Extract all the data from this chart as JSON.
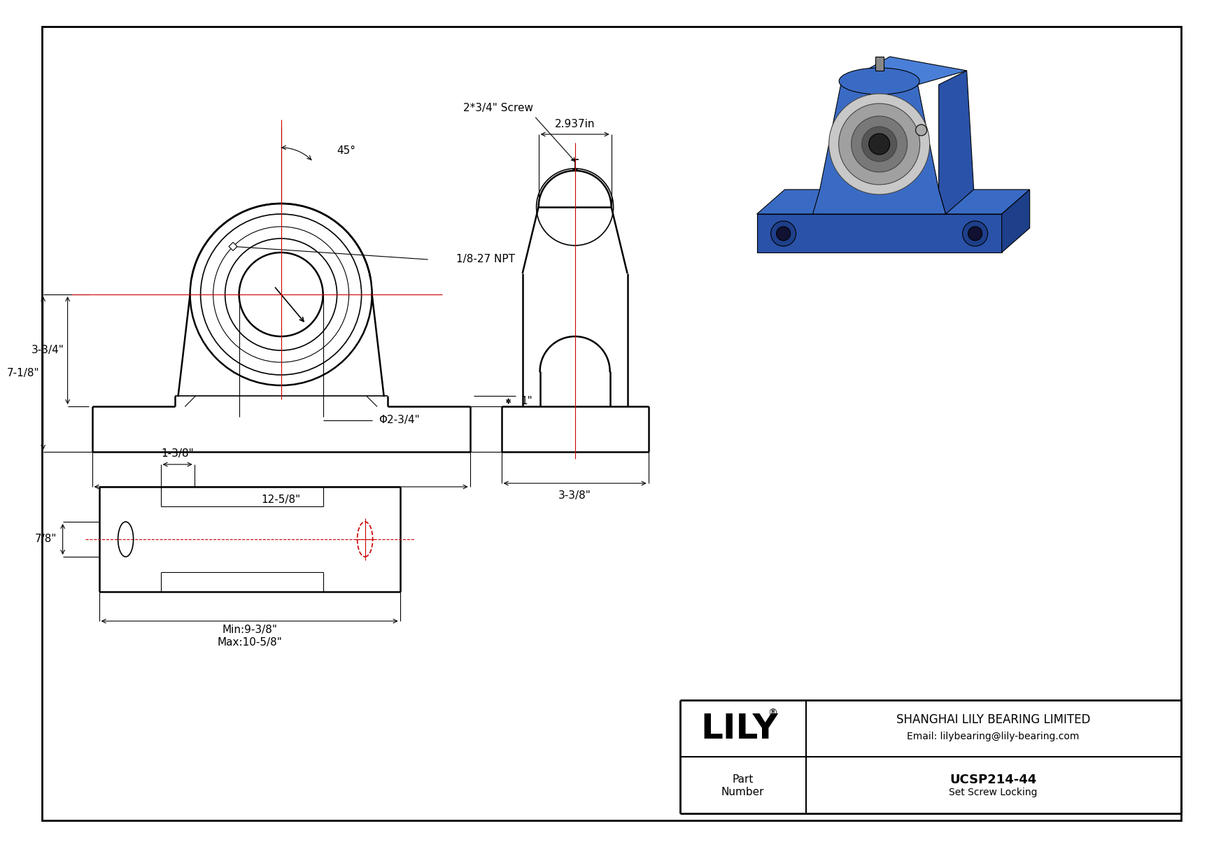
{
  "bg_color": "#ffffff",
  "line_color": "#000000",
  "red_color": "#cc0000",
  "blue1": "#1e3f8a",
  "blue2": "#2a52a8",
  "blue3": "#3a6bc4",
  "blue4": "#4a7fd8",
  "silver1": "#c8c8c8",
  "silver2": "#a0a0a0",
  "silver3": "#787878",
  "company": "SHANGHAI LILY BEARING LIMITED",
  "email": "Email: lilybearing@lily-bearing.com",
  "part_number": "UCSP214-44",
  "part_type": "Set Screw Locking",
  "lily_text": "LILY",
  "dim_45": "45°",
  "dim_npt": "1/8-27 NPT",
  "dim_7_1_8": "7-1/8\"",
  "dim_3_3_4": "3-3/4\"",
  "dim_1": "1\"",
  "dim_phi": "Φ2-3/4\"",
  "dim_12_5_8": "12-5/8\"",
  "dim_2_937": "2.937in",
  "dim_screw": "2*3/4\" Screw",
  "dim_3_3_8": "3-3/8\"",
  "dim_1_3_8": "1-3/8\"",
  "dim_7_8": "7/8\"",
  "dim_min": "Min:9-3/8\"",
  "dim_max": "Max:10-5/8\""
}
